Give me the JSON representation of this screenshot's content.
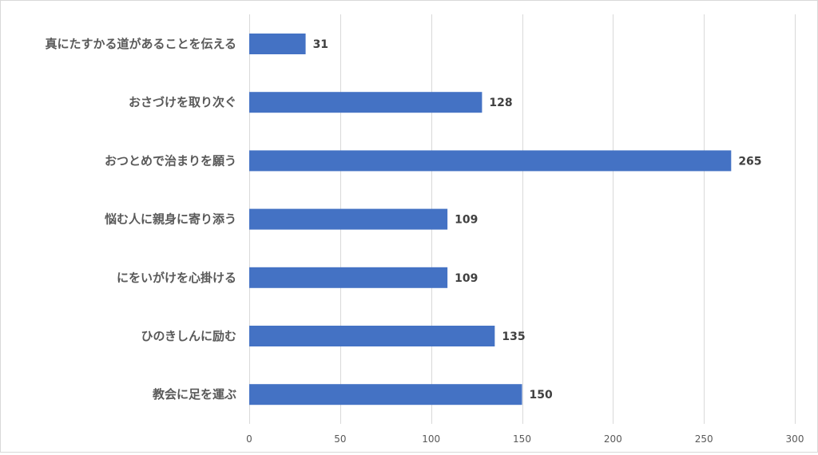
{
  "chart_data": {
    "type": "bar",
    "orientation": "horizontal",
    "categories": [
      "真にたすかる道があることを伝える",
      "おさづけを取り次ぐ",
      "おつとめで治まりを願う",
      "悩む人に親身に寄り添う",
      "にをいがけを心掛ける",
      "ひのきしんに励む",
      "教会に足を運ぶ"
    ],
    "values": [
      31,
      128,
      265,
      109,
      109,
      135,
      150
    ],
    "title": "",
    "xlabel": "",
    "ylabel": "",
    "xlim": [
      0,
      300
    ],
    "xticks": [
      "0",
      "50",
      "100",
      "150",
      "200",
      "250",
      "300"
    ],
    "grid": "vertical",
    "legend": "none",
    "data_labels": true,
    "colors": {
      "bar": "#4472c4",
      "grid": "#d9d9d9",
      "label": "#595959",
      "value": "#404040"
    }
  }
}
